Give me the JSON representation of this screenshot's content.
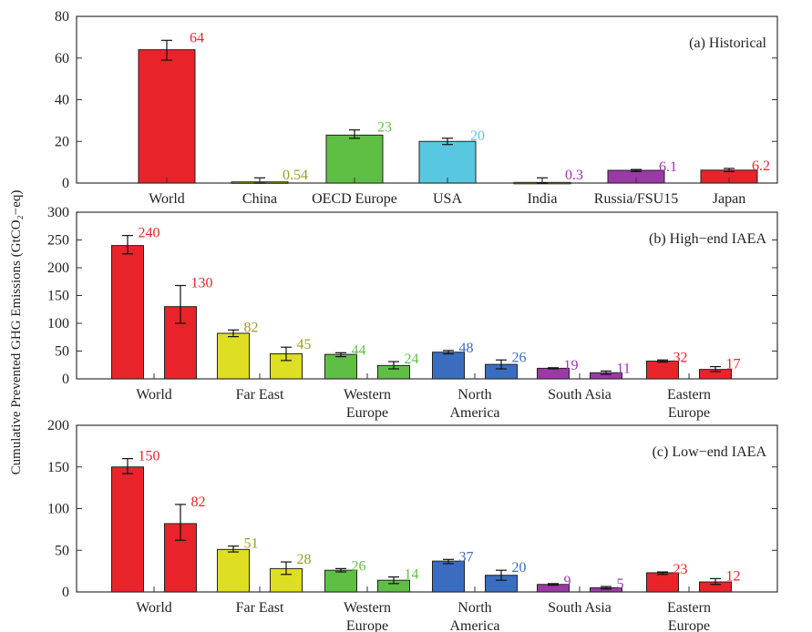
{
  "ylabel": "Cumulative Prevented GHG Emissions (GtCO₂−eq)",
  "colors": {
    "red": "#e8242a",
    "olive": "#a3a316",
    "yellow": "#dede22",
    "green": "#5fbf45",
    "cyan": "#58c8e0",
    "blue": "#3a6dc0",
    "purple": "#9b3aa6",
    "violet_text": "#a032b4",
    "olive_text": "#9b9b25"
  },
  "chart_data": [
    {
      "type": "bar",
      "title": "(a) Historical",
      "ylim": [
        0,
        80
      ],
      "yticks": [
        0,
        20,
        40,
        60,
        80
      ],
      "categories": [
        "World",
        "China",
        "OECD Europe",
        "USA",
        "India",
        "Russia/FSU15",
        "Japan"
      ],
      "values": [
        64,
        0.54,
        23,
        20,
        0.3,
        6.1,
        6.2
      ],
      "value_labels": [
        "64",
        "0.54",
        "23",
        "20",
        "0.3",
        "6.1",
        "6.2"
      ],
      "error_low": [
        59,
        0,
        21.5,
        18.5,
        0,
        5.5,
        5.5
      ],
      "error_high": [
        68.5,
        2.5,
        25.5,
        21.5,
        2.5,
        6.5,
        7
      ],
      "bar_colors": [
        "red",
        "olive",
        "green",
        "cyan",
        "olive",
        "purple",
        "red"
      ],
      "label_colors": [
        "red",
        "olive_text",
        "green",
        "cyan",
        "violet_text",
        "violet_text",
        "red"
      ]
    },
    {
      "type": "bar",
      "title": "(b) High−end IAEA",
      "ylim": [
        0,
        300
      ],
      "yticks": [
        0,
        50,
        100,
        150,
        200,
        250,
        300
      ],
      "groups": [
        {
          "label": [
            "World"
          ],
          "values": [
            240,
            130
          ],
          "value_labels": [
            "240",
            "130"
          ],
          "error_low": [
            225,
            100
          ],
          "error_high": [
            258,
            168
          ],
          "color": "red"
        },
        {
          "label": [
            "Far East"
          ],
          "values": [
            82,
            45
          ],
          "value_labels": [
            "82",
            "45"
          ],
          "error_low": [
            76,
            33
          ],
          "error_high": [
            88,
            57
          ],
          "color": "yellow",
          "label_color": "olive_text"
        },
        {
          "label": [
            "Western",
            "Europe"
          ],
          "values": [
            44,
            24
          ],
          "value_labels": [
            "44",
            "24"
          ],
          "error_low": [
            40,
            18
          ],
          "error_high": [
            47,
            31
          ],
          "color": "green"
        },
        {
          "label": [
            "North",
            "America"
          ],
          "values": [
            48,
            26
          ],
          "value_labels": [
            "48",
            "26"
          ],
          "error_low": [
            45,
            18
          ],
          "error_high": [
            51,
            34
          ],
          "color": "blue"
        },
        {
          "label": [
            "South Asia"
          ],
          "values": [
            19,
            11
          ],
          "value_labels": [
            "19",
            "11"
          ],
          "error_low": [
            18,
            8
          ],
          "error_high": [
            20,
            14
          ],
          "color": "purple",
          "label_color": "violet_text"
        },
        {
          "label": [
            "Eastern",
            "Europe"
          ],
          "values": [
            32,
            17
          ],
          "value_labels": [
            "32",
            "17"
          ],
          "error_low": [
            30,
            13
          ],
          "error_high": [
            34,
            22
          ],
          "color": "red"
        }
      ]
    },
    {
      "type": "bar",
      "title": "(c) Low−end IAEA",
      "ylim": [
        0,
        200
      ],
      "yticks": [
        0,
        50,
        100,
        150,
        200
      ],
      "groups": [
        {
          "label": [
            "World"
          ],
          "values": [
            150,
            82
          ],
          "value_labels": [
            "150",
            "82"
          ],
          "error_low": [
            142,
            62
          ],
          "error_high": [
            160,
            105
          ],
          "color": "red"
        },
        {
          "label": [
            "Far East"
          ],
          "values": [
            51,
            28
          ],
          "value_labels": [
            "51",
            "28"
          ],
          "error_low": [
            48,
            21
          ],
          "error_high": [
            55,
            36
          ],
          "color": "yellow",
          "label_color": "olive_text"
        },
        {
          "label": [
            "Western",
            "Europe"
          ],
          "values": [
            26,
            14
          ],
          "value_labels": [
            "26",
            "14"
          ],
          "error_low": [
            24,
            10
          ],
          "error_high": [
            28,
            18
          ],
          "color": "green"
        },
        {
          "label": [
            "North",
            "America"
          ],
          "values": [
            37,
            20
          ],
          "value_labels": [
            "37",
            "20"
          ],
          "error_low": [
            34,
            14
          ],
          "error_high": [
            39,
            26
          ],
          "color": "blue"
        },
        {
          "label": [
            "South Asia"
          ],
          "values": [
            9,
            5
          ],
          "value_labels": [
            "9",
            "5"
          ],
          "error_low": [
            8,
            3.5
          ],
          "error_high": [
            10,
            6.5
          ],
          "color": "purple",
          "label_color": "violet_text"
        },
        {
          "label": [
            "Eastern",
            "Europe"
          ],
          "values": [
            23,
            12
          ],
          "value_labels": [
            "23",
            "12"
          ],
          "error_low": [
            21,
            9
          ],
          "error_high": [
            24,
            16
          ],
          "color": "red"
        }
      ]
    }
  ]
}
